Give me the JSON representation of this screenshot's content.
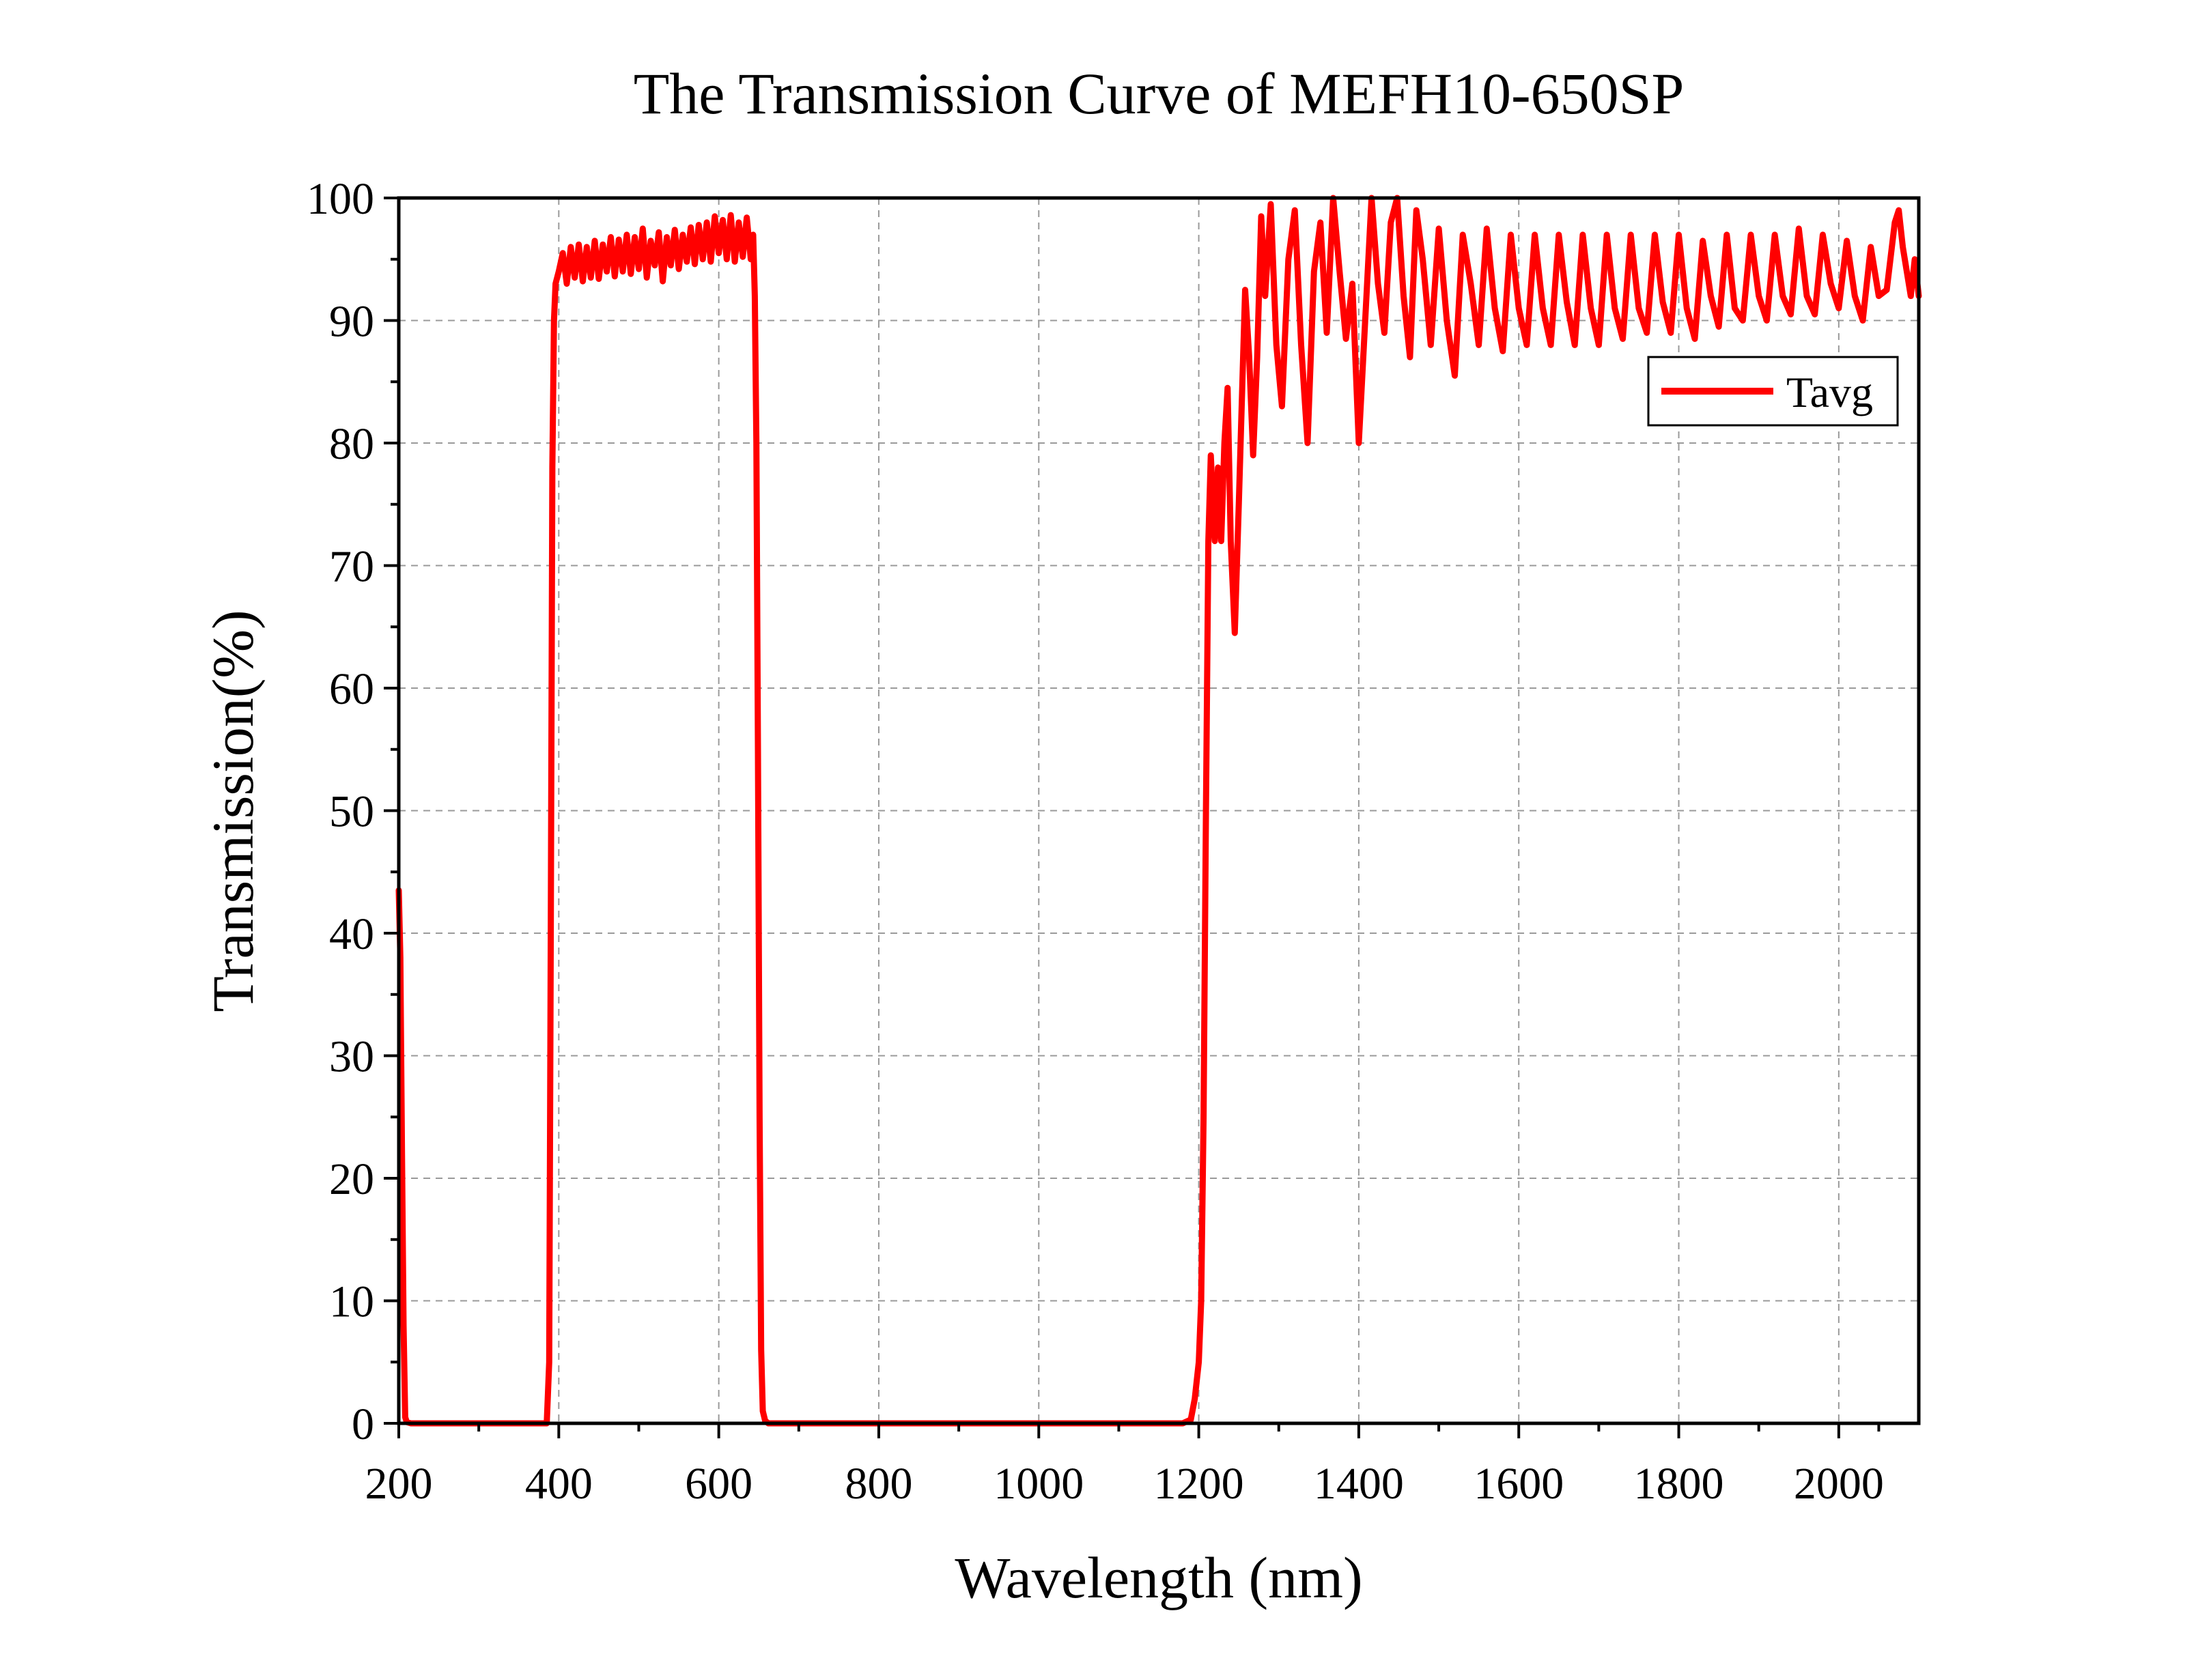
{
  "chart_data": {
    "type": "line",
    "title": "The Transmission Curve of MEFH10-650SP",
    "xlabel": "Wavelength (nm)",
    "ylabel": "Transmission(%)",
    "xlim": [
      200,
      2100
    ],
    "ylim": [
      0,
      100
    ],
    "x_ticks": [
      200,
      400,
      600,
      800,
      1000,
      1200,
      1400,
      1600,
      1800,
      2000
    ],
    "y_ticks": [
      0,
      10,
      20,
      30,
      40,
      50,
      60,
      70,
      80,
      90,
      100
    ],
    "grid": true,
    "legend_position": "top-right",
    "series_color": "#ff0000",
    "series": [
      {
        "name": "Tavg",
        "points": [
          [
            200,
            43.5
          ],
          [
            202,
            38
          ],
          [
            204,
            22
          ],
          [
            206,
            8
          ],
          [
            208,
            0.5
          ],
          [
            210,
            0.1
          ],
          [
            215,
            0
          ],
          [
            380,
            0
          ],
          [
            385,
            0
          ],
          [
            388,
            5
          ],
          [
            390,
            40
          ],
          [
            392,
            78
          ],
          [
            394,
            90
          ],
          [
            396,
            93
          ],
          [
            400,
            94
          ],
          [
            405,
            95.5
          ],
          [
            410,
            93
          ],
          [
            415,
            96
          ],
          [
            420,
            93.5
          ],
          [
            425,
            96.2
          ],
          [
            430,
            93.2
          ],
          [
            435,
            96
          ],
          [
            440,
            93.5
          ],
          [
            445,
            96.5
          ],
          [
            450,
            93.4
          ],
          [
            455,
            96.2
          ],
          [
            460,
            94
          ],
          [
            465,
            96.8
          ],
          [
            470,
            93.6
          ],
          [
            475,
            96.6
          ],
          [
            480,
            94
          ],
          [
            485,
            97
          ],
          [
            490,
            93.8
          ],
          [
            495,
            96.8
          ],
          [
            500,
            94.2
          ],
          [
            505,
            97.5
          ],
          [
            510,
            93.5
          ],
          [
            515,
            96.5
          ],
          [
            520,
            94.5
          ],
          [
            525,
            97.2
          ],
          [
            530,
            93.2
          ],
          [
            535,
            96.8
          ],
          [
            540,
            94.5
          ],
          [
            545,
            97.4
          ],
          [
            550,
            94.2
          ],
          [
            555,
            97
          ],
          [
            560,
            94.8
          ],
          [
            565,
            97.6
          ],
          [
            570,
            94.6
          ],
          [
            575,
            97.8
          ],
          [
            580,
            95
          ],
          [
            585,
            98
          ],
          [
            590,
            94.8
          ],
          [
            595,
            98.5
          ],
          [
            600,
            95.5
          ],
          [
            605,
            98.2
          ],
          [
            610,
            95
          ],
          [
            615,
            98.6
          ],
          [
            620,
            94.8
          ],
          [
            625,
            98
          ],
          [
            630,
            95.2
          ],
          [
            635,
            98.4
          ],
          [
            640,
            95
          ],
          [
            643,
            97
          ],
          [
            645,
            92
          ],
          [
            647,
            80
          ],
          [
            649,
            55
          ],
          [
            651,
            25
          ],
          [
            653,
            6
          ],
          [
            655,
            1
          ],
          [
            658,
            0.2
          ],
          [
            662,
            0
          ],
          [
            1180,
            0
          ],
          [
            1190,
            0.3
          ],
          [
            1195,
            2
          ],
          [
            1200,
            5
          ],
          [
            1203,
            10
          ],
          [
            1206,
            25
          ],
          [
            1209,
            50
          ],
          [
            1212,
            72
          ],
          [
            1215,
            79
          ],
          [
            1220,
            72
          ],
          [
            1224,
            78
          ],
          [
            1228,
            72
          ],
          [
            1232,
            80
          ],
          [
            1236,
            84.5
          ],
          [
            1240,
            72
          ],
          [
            1245,
            64.5
          ],
          [
            1250,
            75
          ],
          [
            1255,
            86
          ],
          [
            1258,
            92.5
          ],
          [
            1263,
            87
          ],
          [
            1268,
            79
          ],
          [
            1273,
            87
          ],
          [
            1278,
            98.5
          ],
          [
            1283,
            92
          ],
          [
            1290,
            99.5
          ],
          [
            1297,
            88
          ],
          [
            1304,
            83
          ],
          [
            1312,
            95
          ],
          [
            1320,
            99
          ],
          [
            1328,
            88
          ],
          [
            1336,
            80
          ],
          [
            1344,
            94
          ],
          [
            1352,
            98
          ],
          [
            1360,
            89
          ],
          [
            1368,
            100
          ],
          [
            1376,
            94
          ],
          [
            1384,
            88.5
          ],
          [
            1392,
            93
          ],
          [
            1400,
            80
          ],
          [
            1408,
            90
          ],
          [
            1416,
            100
          ],
          [
            1424,
            93
          ],
          [
            1432,
            89
          ],
          [
            1440,
            98
          ],
          [
            1448,
            100
          ],
          [
            1456,
            92
          ],
          [
            1464,
            87
          ],
          [
            1472,
            99
          ],
          [
            1480,
            95
          ],
          [
            1490,
            88
          ],
          [
            1500,
            97.5
          ],
          [
            1510,
            90
          ],
          [
            1520,
            85.5
          ],
          [
            1530,
            97
          ],
          [
            1540,
            93
          ],
          [
            1550,
            88
          ],
          [
            1560,
            97.5
          ],
          [
            1570,
            91
          ],
          [
            1580,
            87.5
          ],
          [
            1590,
            97
          ],
          [
            1600,
            91
          ],
          [
            1610,
            88
          ],
          [
            1620,
            97
          ],
          [
            1630,
            91
          ],
          [
            1640,
            88
          ],
          [
            1650,
            97
          ],
          [
            1660,
            91.5
          ],
          [
            1670,
            88
          ],
          [
            1680,
            97
          ],
          [
            1690,
            91
          ],
          [
            1700,
            88
          ],
          [
            1710,
            97
          ],
          [
            1720,
            91
          ],
          [
            1730,
            88.5
          ],
          [
            1740,
            97
          ],
          [
            1750,
            91
          ],
          [
            1760,
            89
          ],
          [
            1770,
            97
          ],
          [
            1780,
            91.5
          ],
          [
            1790,
            89
          ],
          [
            1800,
            97
          ],
          [
            1810,
            91
          ],
          [
            1820,
            88.5
          ],
          [
            1830,
            96.5
          ],
          [
            1840,
            92
          ],
          [
            1850,
            89.5
          ],
          [
            1860,
            97
          ],
          [
            1870,
            91
          ],
          [
            1880,
            90
          ],
          [
            1890,
            97
          ],
          [
            1900,
            92
          ],
          [
            1910,
            90
          ],
          [
            1920,
            97
          ],
          [
            1930,
            92
          ],
          [
            1940,
            90.5
          ],
          [
            1950,
            97.5
          ],
          [
            1960,
            92
          ],
          [
            1970,
            90.5
          ],
          [
            1980,
            97
          ],
          [
            1990,
            93
          ],
          [
            2000,
            91
          ],
          [
            2010,
            96.5
          ],
          [
            2020,
            92
          ],
          [
            2030,
            90
          ],
          [
            2040,
            96
          ],
          [
            2050,
            92
          ],
          [
            2060,
            92.5
          ],
          [
            2070,
            98
          ],
          [
            2075,
            99
          ],
          [
            2080,
            96
          ],
          [
            2090,
            92
          ],
          [
            2095,
            95
          ],
          [
            2100,
            92
          ]
        ]
      }
    ]
  }
}
